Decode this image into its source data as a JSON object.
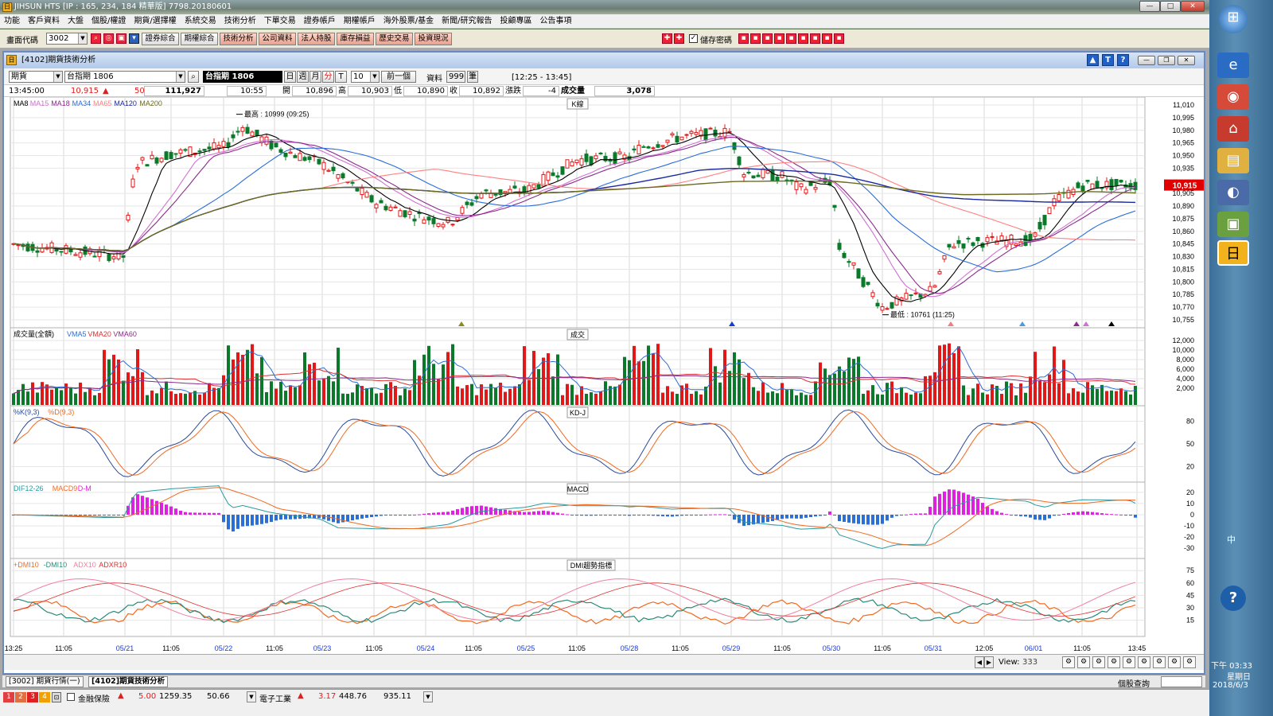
{
  "window": {
    "title": "JIHSUN HTS  [IP : 165, 234, 184 精華版] 7798.20180601"
  },
  "menu": [
    "功能",
    "客戶資料",
    "大盤",
    "個股/權證",
    "期貨/選擇權",
    "系統交易",
    "技術分析",
    "下單交易",
    "證券帳戶",
    "期權帳戶",
    "海外股票/基金",
    "新聞/研究報告",
    "投顧專區",
    "公告事項"
  ],
  "toolbar": {
    "code_label": "畫面代碼",
    "code_value": "3002",
    "buttons": [
      "證券綜合",
      "期權綜合",
      "技術分析",
      "公司資料",
      "法人持股",
      "庫存損益",
      "歷史交易",
      "投資現況"
    ],
    "save_password_label": "儲存密碼"
  },
  "child": {
    "title": "[4102]期貨技術分析",
    "product_type": "期貨",
    "product_name": "台指期 1806",
    "product_display": "台指期 1806",
    "periods": [
      "日",
      "週",
      "月",
      "分",
      "T"
    ],
    "interval": "10",
    "prev_btn": "前一個",
    "data_label": "資料",
    "data_count": "999",
    "data_unit": "筆",
    "time_range": "[12:25 - 13:45]"
  },
  "quote": {
    "time": "13:45:00",
    "price": "10,915",
    "change": "50",
    "volume_total": "111,927",
    "bar_time": "10:55",
    "open_label": "開",
    "open": "10,896",
    "high_label": "高",
    "high": "10,903",
    "low_label": "低",
    "low": "10,890",
    "close_label": "收",
    "close": "10,892",
    "chg_label": "漲跌",
    "chg": "-4",
    "vol_label": "成交量",
    "vol": "3,078"
  },
  "panels": {
    "k": {
      "title": "K線",
      "legend": [
        "MA8",
        "MA15",
        "MA18",
        "MA34",
        "MA65",
        "MA120",
        "MA200"
      ],
      "legend_colors": [
        "#000000",
        "#d070d0",
        "#8b2b8b",
        "#2a6ed8",
        "#ff8080",
        "#1a2aa0",
        "#6b6b20"
      ],
      "yticks": [
        "11,010",
        "10,995",
        "10,980",
        "10,965",
        "10,950",
        "10,935",
        "10,905",
        "10,890",
        "10,875",
        "10,860",
        "10,845",
        "10,830",
        "10,815",
        "10,800",
        "10,785",
        "10,770",
        "10,755"
      ],
      "current": "10,915",
      "high_note": "最高 : 10999 (09:25)",
      "low_note": "最低 : 10761 (11:25)"
    },
    "vol": {
      "title": "成交",
      "legend": [
        "成交量(全額)",
        "VMA5",
        "VMA20",
        "VMA60"
      ],
      "legend_colors": [
        "#000000",
        "#2a6ed8",
        "#e03030",
        "#8b2b8b"
      ],
      "yticks": [
        "12,000",
        "10,000",
        "8,000",
        "6,000",
        "4,000",
        "2,000"
      ]
    },
    "kd": {
      "title": "KD-J",
      "legend": [
        "%K(9,3)",
        "%D(9,3)"
      ],
      "legend_colors": [
        "#2a4a9a",
        "#f06a20"
      ],
      "yticks": [
        "80",
        "50",
        "20"
      ]
    },
    "macd": {
      "title": "MACD",
      "legend": [
        "DIF12-26",
        "MACD9",
        "D-M"
      ],
      "legend_colors": [
        "#2a9aa0",
        "#f06a20",
        "#e020e0"
      ],
      "yticks": [
        "20",
        "10",
        "0",
        "-10",
        "-20",
        "-30"
      ]
    },
    "dmi": {
      "title": "DMI趨勢指標",
      "legend": [
        "+DMI10",
        "-DMI10",
        "ADX10",
        "ADXR10"
      ],
      "legend_colors": [
        "#f06a20",
        "#2a8a7a",
        "#f080a0",
        "#e03030"
      ],
      "yticks": [
        "75",
        "60",
        "45",
        "30",
        "15"
      ]
    }
  },
  "xaxis": [
    "13:25",
    "11:05",
    "05/21",
    "11:05",
    "05/22",
    "11:05",
    "05/23",
    "11:05",
    "05/24",
    "11:05",
    "05/25",
    "11:05",
    "05/28",
    "11:05",
    "05/29",
    "11:05",
    "05/30",
    "11:05",
    "05/31",
    "12:05",
    "06/01",
    "11:05",
    "13:45"
  ],
  "view": {
    "label": "View:",
    "value": "333"
  },
  "tabs": [
    "[3002] 期貨行情(一)",
    "[4102]期貨技術分析"
  ],
  "stock_query": "個股查詢",
  "ticker": {
    "pages": [
      "1",
      "2",
      "3",
      "4"
    ],
    "a_name": "金融保險",
    "a_chg": "5.00",
    "a_idx": "1259.35",
    "a_vol": "50.66",
    "b_name": "電子工業",
    "b_chg": "3.17",
    "b_idx": "448.76",
    "b_vol": "935.11"
  },
  "clock": {
    "lang": "中",
    "time": "下午 03:33",
    "weekday": "星期日",
    "date": "2018/6/3"
  }
}
